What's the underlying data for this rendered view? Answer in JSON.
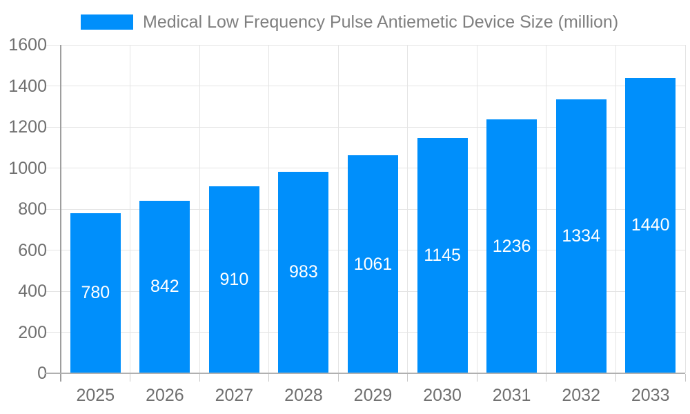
{
  "page": {
    "background": "#ffffff"
  },
  "legend": {
    "position": "top-left",
    "items": [
      {
        "label": "Medical Low Frequency Pulse Antiemetic Device Size (million)",
        "color": "#008FFB"
      }
    ]
  },
  "chart_data": {
    "type": "bar",
    "title": "Medical Low Frequency Pulse Antiemetic Device Size (million)",
    "categories": [
      "2025",
      "2026",
      "2027",
      "2028",
      "2029",
      "2030",
      "2031",
      "2032",
      "2033"
    ],
    "series": [
      {
        "name": "Medical Low Frequency Pulse Antiemetic Device Size (million)",
        "color": "#008FFB",
        "values": [
          780,
          842,
          910,
          983,
          1061,
          1145,
          1236,
          1334,
          1440
        ]
      }
    ],
    "xlabel": "",
    "ylabel": "",
    "ylim": [
      0,
      1600
    ],
    "ytick_interval": 200,
    "ytick_labels": [
      "0",
      "200",
      "400",
      "600",
      "800",
      "1000",
      "1200",
      "1400",
      "1600"
    ],
    "grid": "horizontal-and-vertical",
    "legend_position": "top",
    "value_label_position": "inside-center",
    "value_label_color": "#ffffff"
  },
  "colors": {
    "bar": "#008FFB",
    "gridline": "#e4e4e4",
    "y_axis_line": "#9e9e9e",
    "x_axis_line": "#b0b0b0",
    "tick": "#c8c8c8",
    "axis_text": "#707070",
    "legend_text": "#7f7f7f",
    "value_text": "#ffffff",
    "background": "#ffffff"
  }
}
